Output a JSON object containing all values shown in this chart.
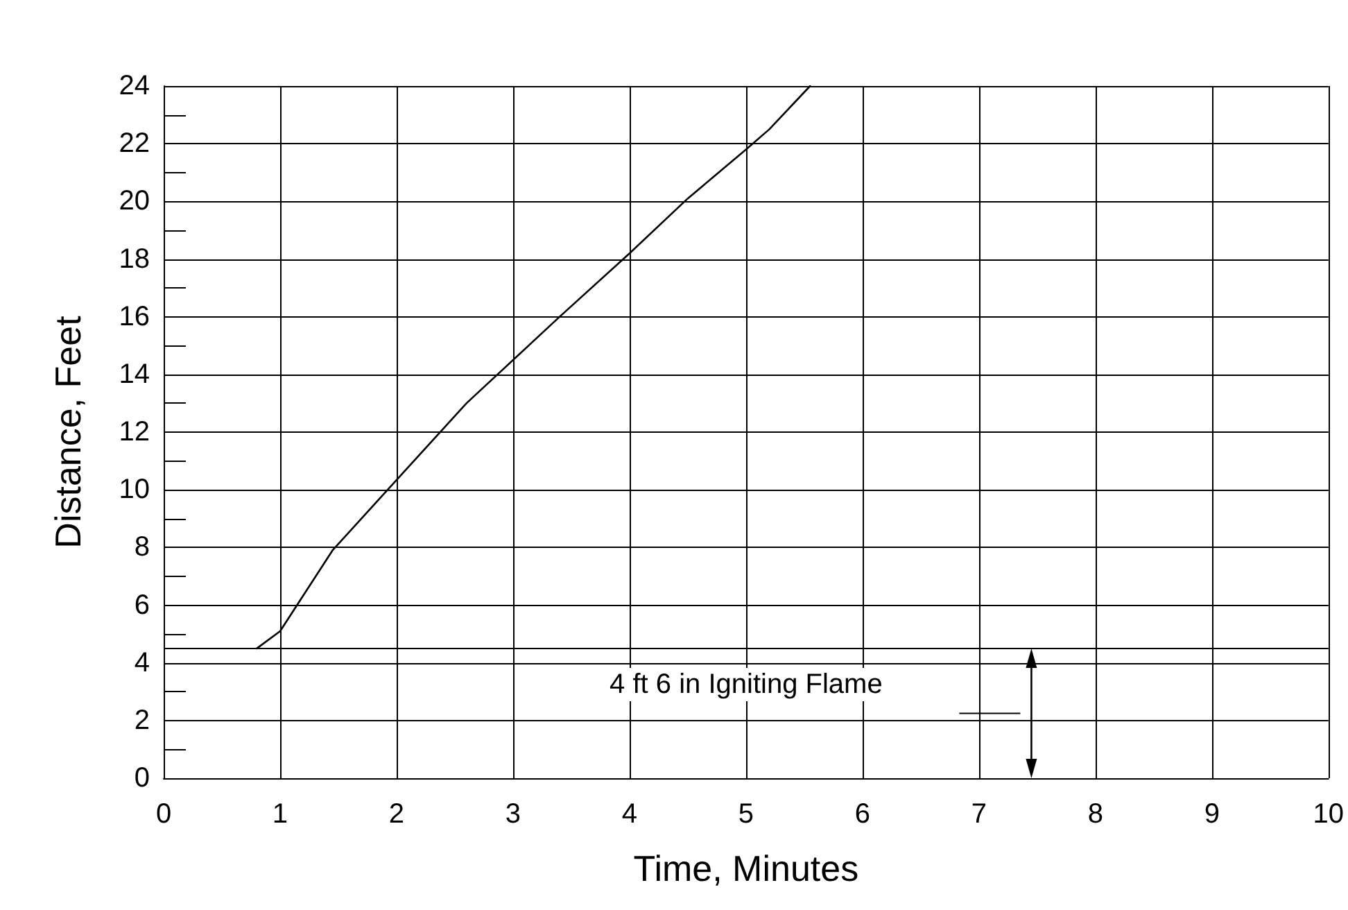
{
  "chart_data": {
    "type": "line",
    "xlabel": "Time, Minutes",
    "ylabel": "Distance, Feet",
    "x": [
      0.8,
      1.0,
      1.45,
      1.9,
      2.6,
      3.4,
      4.0,
      4.5,
      5.0,
      5.2,
      5.55
    ],
    "series": [
      {
        "color": "#000000",
        "values": [
          4.5,
          5.1,
          7.9,
          9.9,
          13.0,
          16.0,
          18.2,
          20.1,
          21.8,
          22.5,
          24
        ]
      }
    ],
    "xlim": [
      0,
      10
    ],
    "xticks": [
      0,
      1,
      2,
      3,
      4,
      5,
      6,
      7,
      8,
      9,
      10
    ],
    "ylim": [
      0,
      24
    ],
    "yticks": [
      0,
      {
        "value": 1,
        "label": null
      },
      2,
      {
        "value": 3,
        "label": null
      },
      4,
      {
        "value": 5,
        "label": null
      },
      6,
      {
        "value": 7,
        "label": null
      },
      8,
      {
        "value": 9,
        "label": null
      },
      10,
      {
        "value": 11,
        "label": null
      },
      12,
      {
        "value": 13,
        "label": null
      },
      14,
      {
        "value": 15,
        "label": null
      },
      16,
      {
        "value": 17,
        "label": null
      },
      18,
      {
        "value": 19,
        "label": null
      },
      20,
      {
        "value": 21,
        "label": null
      },
      22,
      {
        "value": 23,
        "label": null
      },
      24
    ],
    "ref_lines": [
      {
        "axis": "y",
        "value": 4.5,
        "label": "4 ft 6 in Igniting Flame",
        "color": "#000000"
      }
    ],
    "grid": true,
    "marker": "none",
    "line_style": "solid"
  }
}
